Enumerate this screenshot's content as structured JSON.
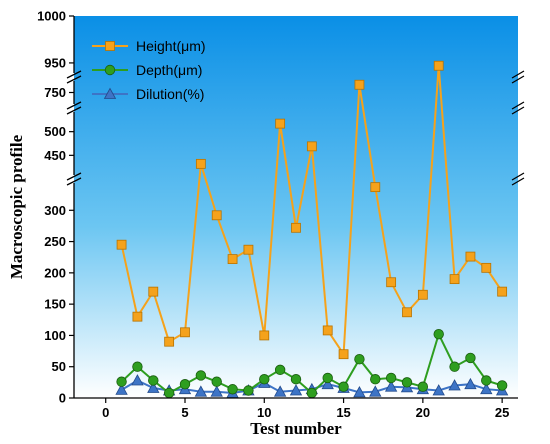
{
  "chart_data": {
    "type": "line",
    "xlabel": "Test number",
    "ylabel": "Macroscopic profile",
    "xlim": [
      -2,
      26
    ],
    "x_ticks": [
      0,
      5,
      10,
      15,
      20,
      25
    ],
    "y_axis_breaks": [
      [
        350,
        400
      ],
      [
        550,
        730
      ],
      [
        770,
        935
      ]
    ],
    "y_ticks": [
      0,
      50,
      100,
      150,
      200,
      250,
      300,
      450,
      500,
      750,
      950,
      1000
    ],
    "legend_position": "top-left",
    "background": {
      "top": "#0a8fe6",
      "bottom": "#ffffff"
    },
    "x": [
      1,
      2,
      3,
      4,
      5,
      6,
      7,
      8,
      9,
      10,
      11,
      12,
      13,
      14,
      15,
      16,
      17,
      18,
      19,
      20,
      21,
      22,
      23,
      24,
      25
    ],
    "series": [
      {
        "name": "Height(μm)",
        "color": "#f5a21b",
        "edge": "#b87300",
        "marker": "square",
        "values": [
          245,
          130,
          170,
          90,
          105,
          432,
          292,
          222,
          237,
          100,
          517,
          272,
          469,
          108,
          70,
          760,
          337,
          185,
          137,
          165,
          947,
          190,
          226,
          208,
          170
        ]
      },
      {
        "name": "Depth(μm)",
        "color": "#2e9e1f",
        "edge": "#1a5e10",
        "marker": "circle",
        "values": [
          26,
          50,
          28,
          8,
          22,
          36,
          26,
          14,
          12,
          30,
          45,
          30,
          8,
          32,
          18,
          62,
          30,
          32,
          25,
          18,
          102,
          50,
          64,
          28,
          20
        ]
      },
      {
        "name": "Dilution(%)",
        "color": "#3d74c6",
        "edge": "#224a8a",
        "marker": "triangle",
        "values": [
          13,
          28,
          16,
          12,
          14,
          10,
          10,
          8,
          12,
          24,
          10,
          12,
          14,
          22,
          16,
          9,
          10,
          18,
          17,
          14,
          12,
          20,
          22,
          14,
          12
        ]
      }
    ]
  }
}
